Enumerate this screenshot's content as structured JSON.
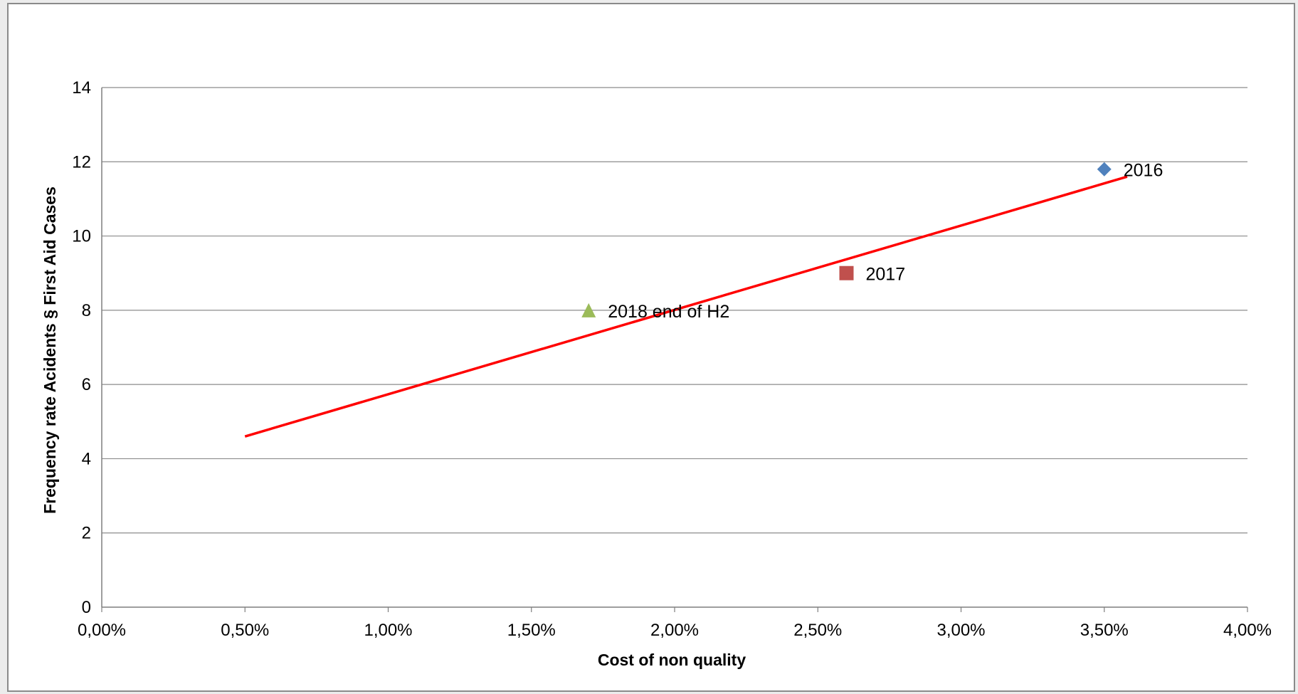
{
  "chart_data": {
    "type": "scatter",
    "xlabel": "Cost of non quality",
    "ylabel": "Frequency rate Acidents  § First Aid Cases",
    "xlim": [
      0,
      0.04
    ],
    "ylim": [
      0,
      14
    ],
    "x_ticks": [
      "0,00%",
      "0,50%",
      "1,00%",
      "1,50%",
      "2,00%",
      "2,50%",
      "3,00%",
      "3,50%",
      "4,00%"
    ],
    "y_ticks": [
      "0",
      "2",
      "4",
      "6",
      "8",
      "10",
      "12",
      "14"
    ],
    "grid": true,
    "points": [
      {
        "label": "2016",
        "x": 0.035,
        "y": 11.8,
        "marker": "diamond",
        "color": "#4f81bd"
      },
      {
        "label": "2017",
        "x": 0.026,
        "y": 9.0,
        "marker": "square",
        "color": "#c0504d"
      },
      {
        "label": "2018 end of H2",
        "x": 0.017,
        "y": 8.0,
        "marker": "triangle",
        "color": "#9bbb59"
      }
    ],
    "trendline": {
      "x": [
        0.005,
        0.0358
      ],
      "y": [
        4.6,
        11.6
      ],
      "color": "#ff0000"
    }
  }
}
